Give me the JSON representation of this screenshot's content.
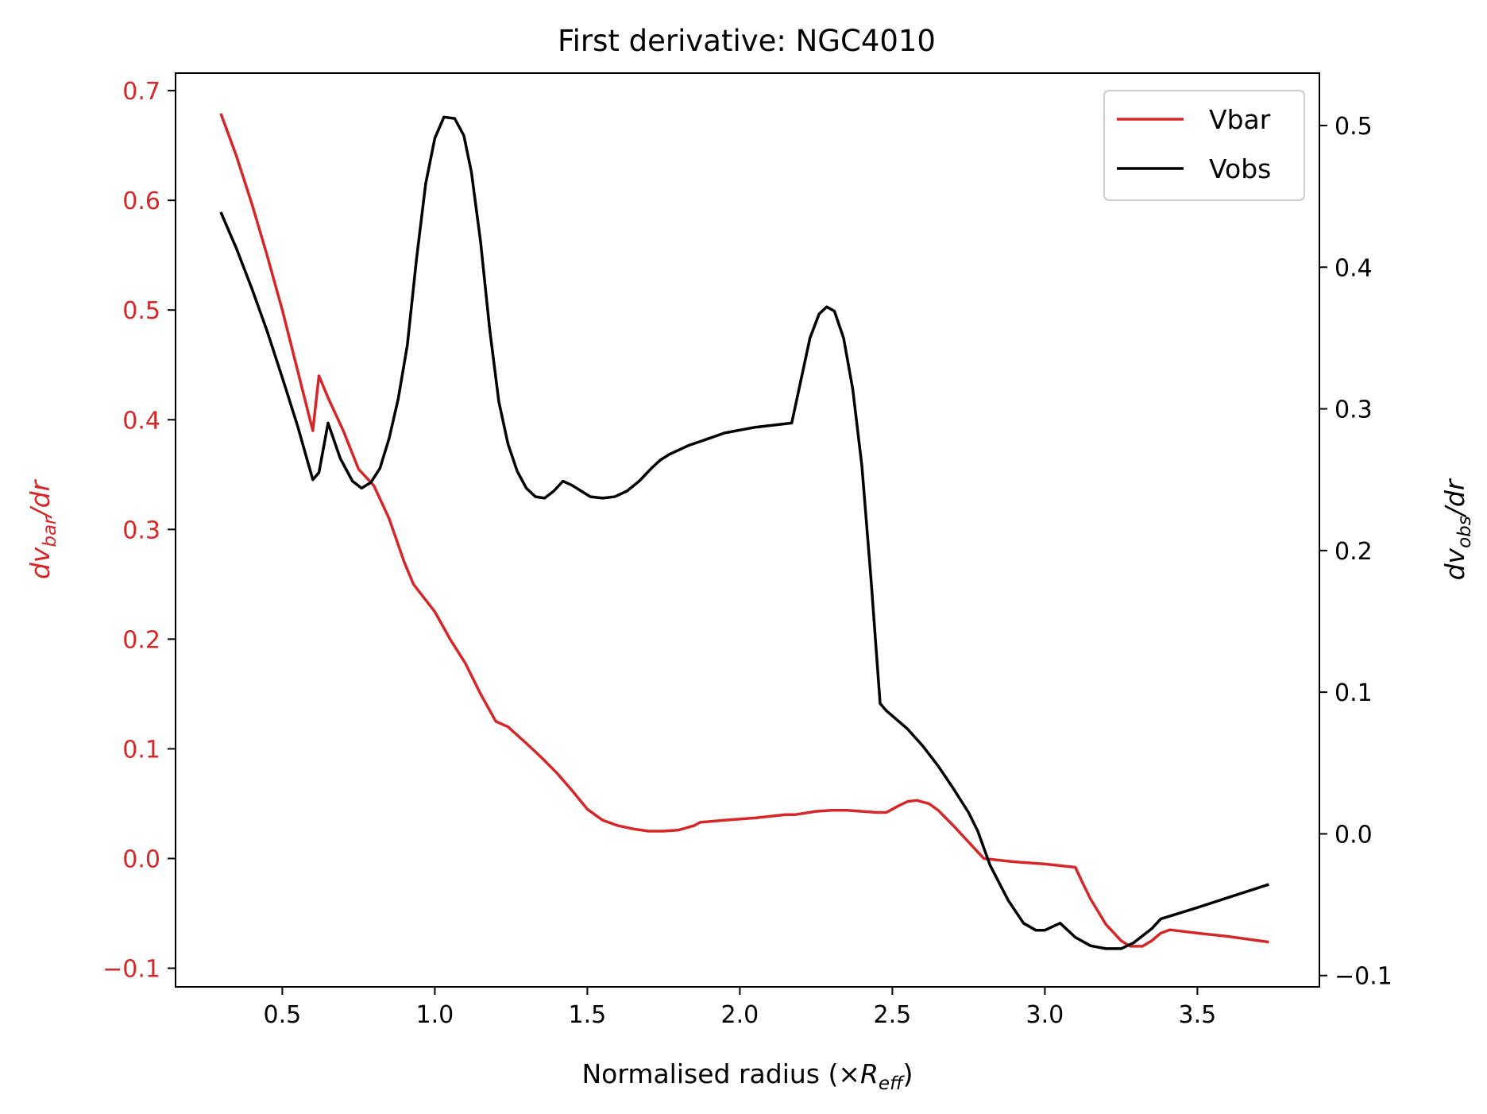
{
  "chart_data": {
    "type": "line",
    "title": "First derivative: NGC4010",
    "xlabel": "Normalised radius (×R_eff)",
    "xlabel_parts": {
      "pre": "Normalised radius (×",
      "sym": "R",
      "sub": "eff",
      "post": ")"
    },
    "ylabel_left": "dv_bar/dr",
    "ylabel_left_parts": {
      "d": "d",
      "v": "v",
      "sub": "bar",
      "post": "/dr"
    },
    "ylabel_right": "dv_obs/dr",
    "ylabel_right_parts": {
      "d": "d",
      "v": "v",
      "sub": "obs",
      "post": "/dr"
    },
    "xlim": [
      0.15,
      3.9
    ],
    "ylim_left": [
      -0.117,
      0.716
    ],
    "ylim_right": [
      -0.108,
      0.537
    ],
    "x_ticks": [
      0.5,
      1.0,
      1.5,
      2.0,
      2.5,
      3.0,
      3.5
    ],
    "x_tick_labels": [
      "0.5",
      "1.0",
      "1.5",
      "2.0",
      "2.5",
      "3.0",
      "3.5"
    ],
    "y_left_ticks": [
      -0.1,
      0.0,
      0.1,
      0.2,
      0.3,
      0.4,
      0.5,
      0.6,
      0.7
    ],
    "y_left_tick_labels": [
      "−0.1",
      "0.0",
      "0.1",
      "0.2",
      "0.3",
      "0.4",
      "0.5",
      "0.6",
      "0.7"
    ],
    "y_right_ticks": [
      -0.1,
      0.0,
      0.1,
      0.2,
      0.3,
      0.4,
      0.5
    ],
    "y_right_tick_labels": [
      "−0.1",
      "0.0",
      "0.1",
      "0.2",
      "0.3",
      "0.4",
      "0.5"
    ],
    "legend_position": "top-right",
    "grid": false,
    "series": [
      {
        "name": "Vbar",
        "axis": "left",
        "color": "#d62728",
        "x": [
          0.3,
          0.35,
          0.4,
          0.45,
          0.5,
          0.55,
          0.6,
          0.62,
          0.65,
          0.7,
          0.75,
          0.8,
          0.85,
          0.9,
          0.93,
          1.0,
          1.05,
          1.1,
          1.15,
          1.2,
          1.24,
          1.3,
          1.35,
          1.4,
          1.45,
          1.5,
          1.55,
          1.6,
          1.65,
          1.7,
          1.75,
          1.8,
          1.85,
          1.87,
          1.95,
          2.05,
          2.15,
          2.18,
          2.25,
          2.3,
          2.35,
          2.4,
          2.45,
          2.48,
          2.52,
          2.55,
          2.58,
          2.62,
          2.65,
          2.7,
          2.75,
          2.8,
          2.9,
          3.0,
          3.1,
          3.12,
          3.15,
          3.2,
          3.25,
          3.28,
          3.32,
          3.35,
          3.38,
          3.41,
          3.5,
          3.6,
          3.73
        ],
        "y": [
          0.678,
          0.64,
          0.597,
          0.55,
          0.5,
          0.445,
          0.39,
          0.44,
          0.42,
          0.39,
          0.355,
          0.34,
          0.31,
          0.27,
          0.25,
          0.225,
          0.2,
          0.178,
          0.15,
          0.125,
          0.12,
          0.105,
          0.092,
          0.078,
          0.062,
          0.045,
          0.035,
          0.03,
          0.027,
          0.025,
          0.025,
          0.026,
          0.03,
          0.033,
          0.035,
          0.037,
          0.04,
          0.04,
          0.043,
          0.044,
          0.044,
          0.043,
          0.042,
          0.042,
          0.048,
          0.052,
          0.053,
          0.05,
          0.044,
          0.03,
          0.015,
          0.0,
          -0.003,
          -0.005,
          -0.008,
          -0.02,
          -0.037,
          -0.06,
          -0.075,
          -0.08,
          -0.08,
          -0.075,
          -0.068,
          -0.065,
          -0.068,
          -0.071,
          -0.076
        ]
      },
      {
        "name": "Vobs",
        "axis": "right",
        "color": "#000000",
        "x": [
          0.3,
          0.35,
          0.4,
          0.45,
          0.5,
          0.55,
          0.6,
          0.62,
          0.65,
          0.69,
          0.73,
          0.76,
          0.79,
          0.82,
          0.85,
          0.88,
          0.91,
          0.94,
          0.97,
          1.0,
          1.03,
          1.065,
          1.095,
          1.12,
          1.15,
          1.18,
          1.21,
          1.24,
          1.27,
          1.3,
          1.33,
          1.36,
          1.39,
          1.42,
          1.45,
          1.48,
          1.51,
          1.55,
          1.59,
          1.63,
          1.67,
          1.71,
          1.74,
          1.77,
          1.8,
          1.83,
          1.87,
          1.95,
          2.05,
          2.17,
          2.2,
          2.23,
          2.26,
          2.285,
          2.31,
          2.34,
          2.37,
          2.4,
          2.43,
          2.46,
          2.48,
          2.55,
          2.6,
          2.65,
          2.7,
          2.75,
          2.78,
          2.82,
          2.88,
          2.93,
          2.97,
          3.0,
          3.05,
          3.1,
          3.15,
          3.2,
          3.25,
          3.29,
          3.32,
          3.35,
          3.38,
          3.41,
          3.5,
          3.6,
          3.73
        ],
        "y": [
          0.438,
          0.413,
          0.385,
          0.355,
          0.322,
          0.288,
          0.25,
          0.255,
          0.29,
          0.265,
          0.249,
          0.244,
          0.248,
          0.258,
          0.279,
          0.307,
          0.345,
          0.406,
          0.459,
          0.491,
          0.506,
          0.505,
          0.493,
          0.467,
          0.418,
          0.356,
          0.305,
          0.275,
          0.256,
          0.244,
          0.238,
          0.237,
          0.242,
          0.249,
          0.246,
          0.242,
          0.238,
          0.237,
          0.238,
          0.242,
          0.249,
          0.258,
          0.264,
          0.268,
          0.271,
          0.274,
          0.277,
          0.283,
          0.287,
          0.29,
          0.32,
          0.35,
          0.367,
          0.372,
          0.369,
          0.35,
          0.314,
          0.26,
          0.18,
          0.092,
          0.087,
          0.074,
          0.062,
          0.048,
          0.032,
          0.015,
          0.002,
          -0.022,
          -0.047,
          -0.063,
          -0.068,
          -0.068,
          -0.063,
          -0.073,
          -0.079,
          -0.081,
          -0.081,
          -0.077,
          -0.072,
          -0.067,
          -0.06,
          -0.058,
          -0.052,
          -0.045,
          -0.036
        ]
      }
    ]
  }
}
